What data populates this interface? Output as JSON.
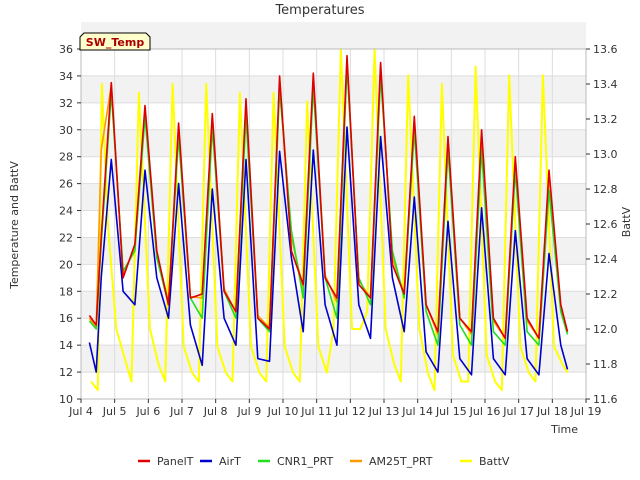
{
  "chart_data": {
    "type": "line",
    "title": "Temperatures",
    "xlabel": "Time",
    "ylabel": "Temperature and BattV",
    "y2label": "BattV",
    "annotation": "SW_Temp",
    "xlim": [
      4,
      19
    ],
    "ylim": [
      10,
      36
    ],
    "y2lim": [
      11.6,
      13.6
    ],
    "xticks": [
      4,
      5,
      6,
      7,
      8,
      9,
      10,
      11,
      12,
      13,
      14,
      15,
      16,
      17,
      18,
      19
    ],
    "xtick_labels": [
      "Jul 4",
      "Jul 5",
      "Jul 6",
      "Jul 7",
      "Jul 8",
      "Jul 9",
      "Jul 10",
      "Jul 11",
      "Jul 12",
      "Jul 13",
      "Jul 14",
      "Jul 15",
      "Jul 16",
      "Jul 17",
      "Jul 18",
      "Jul 19"
    ],
    "yticks": [
      10,
      12,
      14,
      16,
      18,
      20,
      22,
      24,
      26,
      28,
      30,
      32,
      34,
      36
    ],
    "y2ticks": [
      11.6,
      11.8,
      12.0,
      12.2,
      12.4,
      12.6,
      12.8,
      13.0,
      13.2,
      13.4,
      13.6
    ],
    "legend_position": "bottom",
    "series": [
      {
        "name": "PanelT",
        "color": "#dd0000",
        "axis": "left",
        "x": [
          4.25,
          4.45,
          4.6,
          4.9,
          5.25,
          5.6,
          5.9,
          6.25,
          6.6,
          6.9,
          7.25,
          7.6,
          7.9,
          8.25,
          8.6,
          8.9,
          9.25,
          9.6,
          9.9,
          10.25,
          10.6,
          10.9,
          11.25,
          11.6,
          11.9,
          12.25,
          12.6,
          12.9,
          13.25,
          13.6,
          13.9,
          14.25,
          14.6,
          14.9,
          15.25,
          15.6,
          15.9,
          16.25,
          16.6,
          16.9,
          17.25,
          17.6,
          17.9,
          18.25,
          18.45
        ],
        "y": [
          16.2,
          15.5,
          22.0,
          33.5,
          19.0,
          21.5,
          31.8,
          21.0,
          17.0,
          30.5,
          17.5,
          17.8,
          31.2,
          18.0,
          16.5,
          32.3,
          16.0,
          15.2,
          34.0,
          21.0,
          18.5,
          34.2,
          19.0,
          17.5,
          35.5,
          18.5,
          17.5,
          35.0,
          20.0,
          17.8,
          31.0,
          17.0,
          15.0,
          29.5,
          16.0,
          15.0,
          30.0,
          16.0,
          14.5,
          28.0,
          16.0,
          14.5,
          27.0,
          17.0,
          15.0
        ]
      },
      {
        "name": "AirT",
        "color": "#0000cc",
        "axis": "left",
        "x": [
          4.25,
          4.45,
          4.6,
          4.9,
          5.25,
          5.6,
          5.9,
          6.25,
          6.6,
          6.9,
          7.25,
          7.6,
          7.9,
          8.25,
          8.6,
          8.9,
          9.25,
          9.6,
          9.9,
          10.25,
          10.6,
          10.9,
          11.25,
          11.6,
          11.9,
          12.25,
          12.6,
          12.9,
          13.25,
          13.6,
          13.9,
          14.25,
          14.6,
          14.9,
          15.25,
          15.6,
          15.9,
          16.25,
          16.6,
          16.9,
          17.25,
          17.6,
          17.9,
          18.25,
          18.45
        ],
        "y": [
          14.2,
          12.0,
          19.0,
          27.8,
          18.0,
          17.0,
          27.0,
          19.0,
          16.0,
          26.0,
          15.5,
          12.5,
          25.6,
          16.0,
          14.0,
          27.8,
          13.0,
          12.8,
          28.4,
          20.5,
          15.0,
          28.5,
          17.0,
          14.0,
          30.2,
          17.0,
          14.5,
          29.5,
          19.0,
          15.0,
          25.0,
          13.5,
          12.0,
          23.2,
          13.0,
          11.8,
          24.2,
          13.0,
          11.8,
          22.5,
          13.0,
          11.8,
          20.8,
          14.0,
          12.2
        ]
      },
      {
        "name": "CNR1_PRT",
        "color": "#22dd22",
        "axis": "left",
        "x": [
          4.25,
          4.45,
          4.6,
          4.9,
          5.25,
          5.6,
          5.9,
          6.25,
          6.6,
          6.9,
          7.25,
          7.6,
          7.9,
          8.25,
          8.6,
          8.9,
          9.25,
          9.6,
          9.9,
          10.25,
          10.6,
          10.9,
          11.25,
          11.6,
          11.9,
          12.25,
          12.6,
          12.9,
          13.25,
          13.6,
          13.9,
          14.25,
          14.6,
          14.9,
          15.25,
          15.6,
          15.9,
          16.25,
          16.6,
          16.9,
          17.25,
          17.6,
          17.9,
          18.25,
          18.45
        ],
        "y": [
          15.8,
          15.2,
          21.5,
          32.8,
          19.5,
          21.0,
          31.0,
          20.5,
          17.0,
          29.5,
          17.5,
          16.0,
          30.2,
          18.0,
          16.0,
          31.0,
          16.0,
          15.0,
          33.0,
          22.5,
          17.5,
          33.2,
          19.0,
          16.0,
          34.8,
          19.0,
          17.0,
          34.0,
          21.0,
          17.5,
          30.0,
          16.5,
          14.0,
          28.5,
          15.5,
          14.0,
          28.5,
          15.0,
          14.0,
          27.0,
          15.0,
          14.0,
          25.5,
          16.5,
          14.8
        ]
      },
      {
        "name": "AM25T_PRT",
        "color": "#ff9900",
        "axis": "left",
        "x": [
          4.25,
          4.45,
          4.6,
          4.9,
          5.25,
          5.6,
          5.9,
          6.25,
          6.6,
          6.9,
          7.25,
          7.6,
          7.9,
          8.25,
          8.6,
          8.9,
          9.25,
          9.6,
          9.9,
          10.25,
          10.6,
          10.9,
          11.25,
          11.6,
          11.9,
          12.25,
          12.6,
          12.9,
          13.25,
          13.6,
          13.9,
          14.25,
          14.6,
          14.9,
          15.25,
          15.6,
          15.9,
          16.25,
          16.6,
          16.9,
          17.25,
          17.6,
          17.9,
          18.25,
          18.45
        ],
        "y": [
          16.0,
          15.3,
          28.5,
          33.3,
          19.2,
          21.3,
          31.6,
          20.8,
          17.2,
          30.2,
          17.6,
          17.5,
          31.0,
          18.2,
          16.4,
          32.0,
          16.2,
          15.3,
          33.7,
          22.0,
          18.2,
          33.8,
          19.2,
          17.2,
          35.2,
          18.8,
          17.5,
          34.6,
          20.5,
          17.8,
          30.6,
          17.0,
          14.8,
          29.2,
          16.0,
          14.8,
          29.6,
          15.8,
          14.5,
          27.6,
          15.8,
          14.5,
          26.6,
          16.8,
          15.0
        ]
      },
      {
        "name": "BattV",
        "color": "#ffff00",
        "axis": "right",
        "x": [
          4.3,
          4.5,
          4.62,
          4.8,
          5.05,
          5.35,
          5.5,
          5.72,
          6.05,
          6.3,
          6.5,
          6.72,
          7.05,
          7.3,
          7.5,
          7.72,
          8.05,
          8.3,
          8.5,
          8.72,
          9.05,
          9.3,
          9.5,
          9.72,
          10.05,
          10.3,
          10.5,
          10.72,
          11.05,
          11.3,
          11.5,
          11.72,
          12.05,
          12.3,
          12.5,
          12.72,
          13.05,
          13.3,
          13.5,
          13.72,
          14.05,
          14.3,
          14.5,
          14.72,
          15.05,
          15.3,
          15.5,
          15.72,
          16.05,
          16.3,
          16.5,
          16.72,
          17.05,
          17.3,
          17.5,
          17.72,
          18.05,
          18.3,
          18.45
        ],
        "y": [
          11.7,
          11.65,
          13.4,
          12.6,
          12.0,
          11.8,
          11.7,
          13.35,
          12.0,
          11.8,
          11.7,
          13.4,
          11.9,
          11.75,
          11.7,
          13.4,
          11.9,
          11.75,
          11.7,
          13.35,
          11.9,
          11.75,
          11.7,
          13.35,
          11.9,
          11.75,
          11.7,
          13.3,
          11.9,
          11.75,
          12.0,
          13.6,
          12.0,
          12.0,
          12.1,
          13.6,
          12.0,
          11.8,
          11.7,
          13.45,
          12.0,
          11.75,
          11.65,
          13.4,
          11.85,
          11.7,
          11.7,
          13.5,
          11.85,
          11.7,
          11.65,
          13.45,
          11.9,
          11.75,
          11.7,
          13.45,
          11.9,
          11.8,
          11.75
        ]
      }
    ]
  }
}
